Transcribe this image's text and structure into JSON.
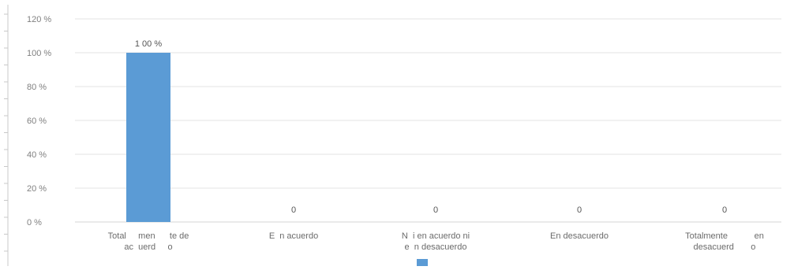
{
  "chart_data": {
    "type": "bar",
    "categories": [
      [
        "Total     men      te de",
        "ac  uerd     o"
      ],
      [
        "E  n acuerdo"
      ],
      [
        "N  i en acuerdo ni",
        "e  n desacuerdo"
      ],
      [
        "En desacuerdo"
      ],
      [
        "Totalmente           en",
        "desacuerd       o"
      ]
    ],
    "values": [
      100,
      0,
      0,
      0,
      0
    ],
    "data_labels": [
      "1 00  %",
      "0",
      "0",
      "0",
      "0"
    ],
    "ylim": [
      0,
      120
    ],
    "yticks": [
      0,
      20,
      40,
      60,
      80,
      100,
      120
    ],
    "ytick_labels": [
      "0 %",
      "20  %",
      "40  %",
      "60  %",
      "80  %",
      "100  %",
      "120  %"
    ],
    "title": "",
    "xlabel": "",
    "ylabel": "",
    "grid": true,
    "legend": "bottom",
    "bar_color": "#5b9bd5",
    "gridline_color": "#e3e3e3",
    "axis_color": "#c8c8c8"
  }
}
